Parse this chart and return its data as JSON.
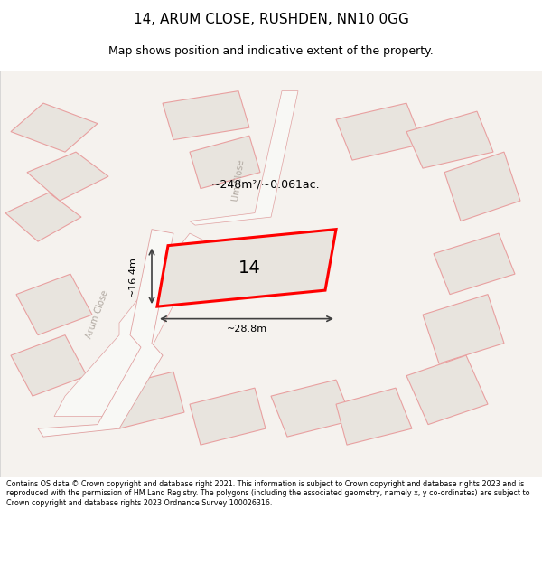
{
  "title_line1": "14, ARUM CLOSE, RUSHDEN, NN10 0GG",
  "title_line2": "Map shows position and indicative extent of the property.",
  "area_label": "~248m²/~0.061ac.",
  "number_label": "14",
  "width_label": "~28.8m",
  "height_label": "~16.4m",
  "road_label1": "Arum Close",
  "road_label2": "Um Close",
  "footer_text": "Contains OS data © Crown copyright and database right 2021. This information is subject to Crown copyright and database rights 2023 and is reproduced with the permission of HM Land Registry. The polygons (including the associated geometry, namely x, y co-ordinates) are subject to Crown copyright and database rights 2023 Ordnance Survey 100026316.",
  "bg_color": "#f0ede8",
  "map_bg": "#f5f2ee",
  "highlight_color": "#ff0000",
  "building_fill": "#e8e4de",
  "building_edge": "#f0a0a0",
  "road_fill": "#ffffff",
  "footer_bg": "#ffffff",
  "title_bg": "#ffffff"
}
